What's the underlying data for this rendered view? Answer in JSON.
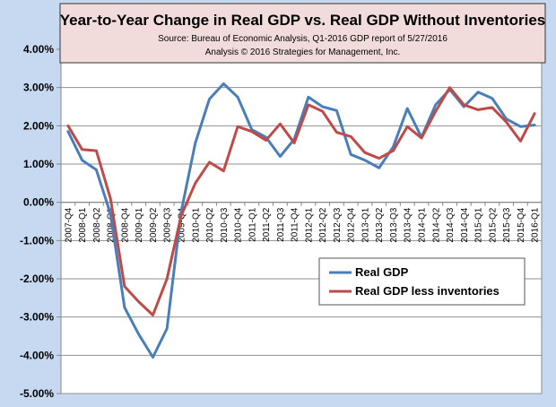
{
  "chart_data": {
    "type": "line",
    "title": "Year-to-Year Change in Real GDP vs. Real GDP Without Inventories",
    "subtitle": "Source: Bureau of Economic Analysis, Q1-2016 GDP report of 5/27/2016",
    "note": "Analysis © 2016 Strategies for Management, Inc.",
    "xlabel": "",
    "ylabel": "",
    "ylim": [
      -5,
      4
    ],
    "yticks": [
      4,
      3,
      2,
      1,
      0,
      -1,
      -2,
      -3,
      -4,
      -5
    ],
    "ytick_labels": [
      "4.00%",
      "3.00%",
      "2.00%",
      "1.00%",
      "0.00%",
      "-1.00%",
      "-2.00%",
      "-3.00%",
      "-4.00%",
      "-5.00%"
    ],
    "grid": true,
    "legend_position": "lower-right",
    "categories": [
      "2007-Q4",
      "2008-Q1",
      "2008-Q2",
      "2008-Q3",
      "2008-Q4",
      "2009-Q1",
      "2009-Q2",
      "2009-Q3",
      "2009-Q4",
      "2010-Q1",
      "2010-Q2",
      "2010-Q3",
      "2010-Q4",
      "2011-Q1",
      "2011-Q2",
      "2011-Q3",
      "2011-Q4",
      "2012-Q1",
      "2012-Q2",
      "2012-Q3",
      "2012-Q4",
      "2013-Q1",
      "2013-Q2",
      "2013-Q3",
      "2013-Q4",
      "2014-Q1",
      "2014-Q2",
      "2014-Q3",
      "2014-Q4",
      "2015-Q1",
      "2015-Q2",
      "2015-Q3",
      "2015-Q4",
      "2016-Q1"
    ],
    "series": [
      {
        "name": "Real GDP",
        "color": "#4a7ebb",
        "values": [
          1.85,
          1.1,
          0.85,
          -0.3,
          -2.75,
          -3.45,
          -4.05,
          -3.3,
          -0.25,
          1.55,
          2.7,
          3.1,
          2.75,
          1.9,
          1.7,
          1.2,
          1.65,
          2.75,
          2.5,
          2.4,
          1.25,
          1.1,
          0.9,
          1.45,
          2.45,
          1.7,
          2.55,
          2.95,
          2.5,
          2.88,
          2.72,
          2.18,
          1.98,
          2.02
        ]
      },
      {
        "name": "Real GDP less inventories",
        "color": "#be4b48",
        "values": [
          2.0,
          1.38,
          1.35,
          0.1,
          -2.2,
          -2.6,
          -2.95,
          -2.0,
          -0.35,
          0.5,
          1.05,
          0.82,
          1.98,
          1.85,
          1.62,
          2.05,
          1.55,
          2.55,
          2.38,
          1.83,
          1.72,
          1.3,
          1.15,
          1.35,
          1.98,
          1.68,
          2.38,
          3.0,
          2.55,
          2.42,
          2.48,
          2.1,
          1.6,
          2.32
        ]
      }
    ]
  }
}
